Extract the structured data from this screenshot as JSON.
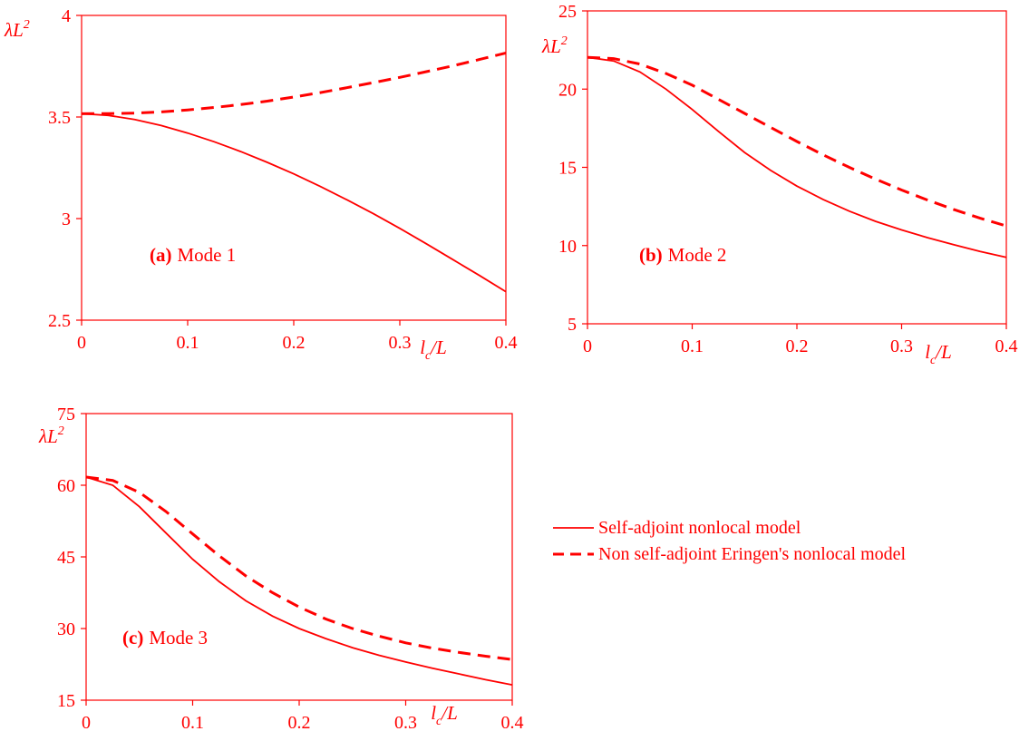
{
  "colors": {
    "ink": "#ff0000",
    "background": "#ffffff"
  },
  "legend": {
    "entries": [
      {
        "label": "Self-adjoint nonlocal model",
        "style": "solid"
      },
      {
        "label": "Non self-adjoint Eringen's nonlocal model",
        "style": "dashed"
      }
    ]
  },
  "chart_data": [
    {
      "type": "line",
      "panel": "(a)",
      "title": "Mode 1",
      "xlabel_main": "l",
      "xlabel_sub": "c",
      "xlabel_tail": "/L",
      "ylabel_main": "λL",
      "ylabel_sup": "2",
      "xlim": [
        0,
        0.4
      ],
      "ylim": [
        2.5,
        4
      ],
      "xticks": [
        "0",
        "0.1",
        "0.2",
        "0.3",
        "0.4"
      ],
      "yticks": [
        "2.5",
        "3",
        "3.5",
        "4"
      ],
      "grid": false,
      "x": [
        0,
        0.025,
        0.05,
        0.075,
        0.1,
        0.125,
        0.15,
        0.175,
        0.2,
        0.225,
        0.25,
        0.275,
        0.3,
        0.325,
        0.35,
        0.375,
        0.4
      ],
      "series": [
        {
          "style": "solid",
          "values": [
            3.516,
            3.508,
            3.488,
            3.458,
            3.421,
            3.378,
            3.33,
            3.277,
            3.22,
            3.158,
            3.093,
            3.024,
            2.952,
            2.876,
            2.798,
            2.72,
            2.64
          ]
        },
        {
          "style": "dashed",
          "values": [
            3.516,
            3.517,
            3.519,
            3.525,
            3.535,
            3.547,
            3.561,
            3.578,
            3.598,
            3.62,
            3.644,
            3.669,
            3.695,
            3.723,
            3.752,
            3.783,
            3.815
          ]
        }
      ]
    },
    {
      "type": "line",
      "panel": "(b)",
      "title": "Mode 2",
      "xlabel_main": "l",
      "xlabel_sub": "c",
      "xlabel_tail": "/L",
      "ylabel_main": "λL",
      "ylabel_sup": "2",
      "xlim": [
        0,
        0.4
      ],
      "ylim": [
        5,
        25
      ],
      "xticks": [
        "0",
        "0.1",
        "0.2",
        "0.3",
        "0.4"
      ],
      "yticks": [
        "5",
        "10",
        "15",
        "20",
        "25"
      ],
      "grid": false,
      "x": [
        0,
        0.025,
        0.05,
        0.075,
        0.1,
        0.125,
        0.15,
        0.175,
        0.2,
        0.225,
        0.25,
        0.275,
        0.3,
        0.325,
        0.35,
        0.375,
        0.4
      ],
      "series": [
        {
          "style": "solid",
          "values": [
            22.03,
            21.8,
            21.1,
            20.0,
            18.7,
            17.3,
            15.95,
            14.8,
            13.8,
            12.95,
            12.2,
            11.55,
            11.0,
            10.5,
            10.05,
            9.62,
            9.25
          ]
        },
        {
          "style": "dashed",
          "values": [
            22.03,
            21.95,
            21.6,
            21.0,
            20.25,
            19.35,
            18.45,
            17.55,
            16.65,
            15.8,
            15.0,
            14.25,
            13.55,
            12.9,
            12.3,
            11.75,
            11.25
          ]
        }
      ]
    },
    {
      "type": "line",
      "panel": "(c)",
      "title": "Mode 3",
      "xlabel_main": "l",
      "xlabel_sub": "c",
      "xlabel_tail": "/L",
      "ylabel_main": "λL",
      "ylabel_sup": "2",
      "xlim": [
        0,
        0.4
      ],
      "ylim": [
        15,
        75
      ],
      "xticks": [
        "0",
        "0.1",
        "0.2",
        "0.3",
        "0.4"
      ],
      "yticks": [
        "15",
        "30",
        "45",
        "60",
        "75"
      ],
      "grid": false,
      "x": [
        0,
        0.025,
        0.05,
        0.075,
        0.1,
        0.125,
        0.15,
        0.175,
        0.2,
        0.225,
        0.25,
        0.275,
        0.3,
        0.325,
        0.35,
        0.375,
        0.4
      ],
      "series": [
        {
          "style": "solid",
          "values": [
            61.7,
            60.0,
            55.5,
            50.0,
            44.5,
            39.8,
            35.8,
            32.6,
            30.0,
            27.9,
            26.0,
            24.4,
            23.0,
            21.7,
            20.5,
            19.3,
            18.2
          ]
        },
        {
          "style": "dashed",
          "values": [
            61.7,
            61.0,
            58.5,
            54.5,
            49.8,
            45.2,
            41.0,
            37.5,
            34.5,
            32.0,
            30.0,
            28.4,
            27.0,
            25.9,
            25.0,
            24.2,
            23.5
          ]
        }
      ]
    }
  ]
}
